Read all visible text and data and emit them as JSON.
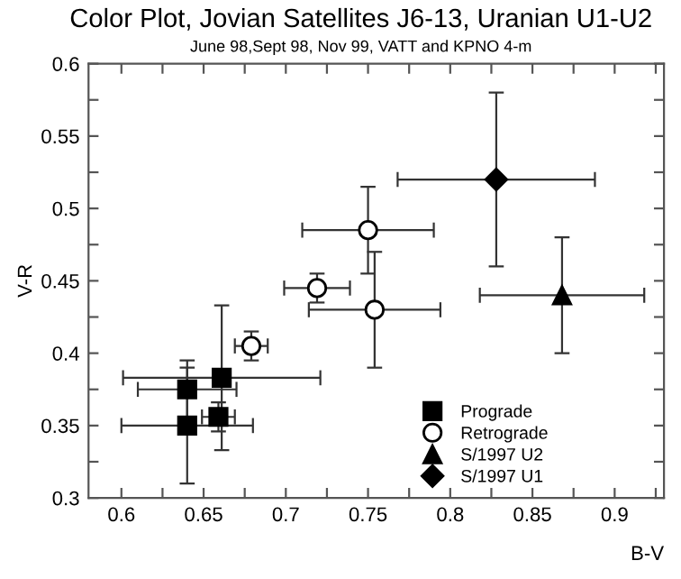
{
  "chart_data": {
    "type": "scatter",
    "title": "Color Plot, Jovian Satellites J6-13, Uranian U1-U2",
    "subtitle": "June 98,Sept 98, Nov 99, VATT and KPNO 4-m",
    "xlabel": "B-V",
    "ylabel": "V-R",
    "xlim": [
      0.58,
      0.93
    ],
    "ylim": [
      0.3,
      0.6
    ],
    "xticks": [
      0.6,
      {
        "value": 0.625,
        "label": null
      },
      0.65,
      {
        "value": 0.675,
        "label": null
      },
      0.7,
      {
        "value": 0.725,
        "label": null
      },
      0.75,
      {
        "value": 0.775,
        "label": null
      },
      0.8,
      {
        "value": 0.825,
        "label": null
      },
      0.85,
      {
        "value": 0.875,
        "label": null
      },
      0.9,
      {
        "value": 0.925,
        "label": null
      }
    ],
    "yticks": [
      0.3,
      {
        "value": 0.325,
        "label": null
      },
      0.35,
      {
        "value": 0.375,
        "label": null
      },
      0.4,
      {
        "value": 0.425,
        "label": null
      },
      0.45,
      {
        "value": 0.475,
        "label": null
      },
      0.5,
      {
        "value": 0.525,
        "label": null
      },
      0.55,
      {
        "value": 0.575,
        "label": null
      },
      0.6
    ],
    "grid": false,
    "legend": "bottom right",
    "series": [
      {
        "name": "Prograde",
        "color": "#000000",
        "marker": "square",
        "x": [
          0.64,
          0.64,
          0.661,
          0.659
        ],
        "values": [
          0.375,
          0.35,
          0.383,
          0.356
        ],
        "xerrors": [
          0.03,
          0.04,
          0.06,
          0.01
        ],
        "errors": [
          0.02,
          0.04,
          0.05,
          0.01
        ]
      },
      {
        "name": "Retrograde",
        "color": "#ffffff",
        "marker": "circle",
        "x": [
          0.679,
          0.75,
          0.719,
          0.754
        ],
        "values": [
          0.405,
          0.485,
          0.445,
          0.43
        ],
        "xerrors": [
          0.01,
          0.04,
          0.02,
          0.04
        ],
        "errors": [
          0.01,
          0.03,
          0.01,
          0.04
        ]
      },
      {
        "name": "S/1997 U2",
        "color": "#000000",
        "marker": "triangle",
        "x": [
          0.868
        ],
        "values": [
          0.44
        ],
        "xerrors": [
          0.05
        ],
        "errors": [
          0.04
        ]
      },
      {
        "name": "S/1997 U1",
        "color": "#000000",
        "marker": "diamond",
        "x": [
          0.828
        ],
        "values": [
          0.52
        ],
        "xerrors": [
          0.06
        ],
        "errors": [
          0.06
        ]
      }
    ]
  }
}
